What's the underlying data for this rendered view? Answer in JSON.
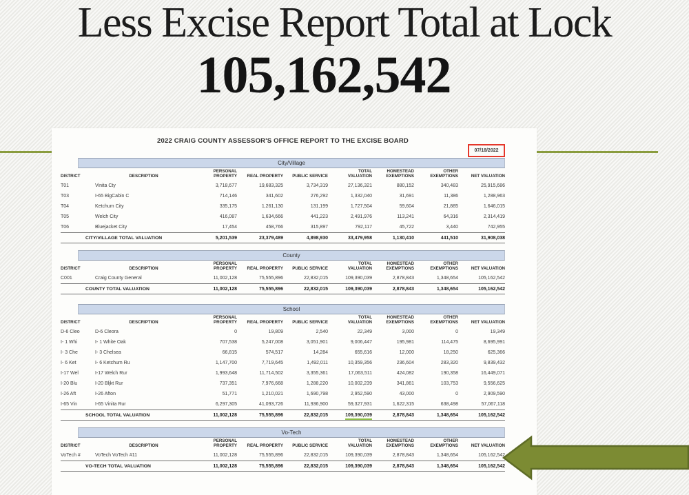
{
  "slide": {
    "title": "Less Excise Report Total at Lock",
    "total_value": "105,162,542"
  },
  "report": {
    "title": "2022 CRAIG COUNTY ASSESSOR'S OFFICE REPORT TO THE EXCISE BOARD",
    "date": "07/18/2022",
    "columns": [
      "DISTRICT",
      "DESCRIPTION",
      "PERSONAL\nPROPERTY",
      "REAL PROPERTY",
      "PUBLIC SERVICE",
      "TOTAL\nVALUATION",
      "HOMESTEAD\nEXEMPTIONS",
      "OTHER\nEXEMPTIONS",
      "NET VALUATION"
    ],
    "sections": [
      {
        "label": "City/Village",
        "rows": [
          {
            "district": "T01",
            "description": "Vinita Cty",
            "values": [
              "3,718,677",
              "19,683,325",
              "3,734,319",
              "27,136,321",
              "880,152",
              "340,483",
              "25,915,686"
            ]
          },
          {
            "district": "T03",
            "description": "I-65 BigCabin C",
            "values": [
              "714,146",
              "341,602",
              "276,292",
              "1,332,040",
              "31,691",
              "11,386",
              "1,288,963"
            ]
          },
          {
            "district": "T04",
            "description": "Ketchum City",
            "values": [
              "335,175",
              "1,261,130",
              "131,199",
              "1,727,504",
              "59,604",
              "21,885",
              "1,646,015"
            ]
          },
          {
            "district": "T05",
            "description": "Welch City",
            "values": [
              "416,087",
              "1,634,666",
              "441,223",
              "2,491,976",
              "113,241",
              "64,316",
              "2,314,419"
            ]
          },
          {
            "district": "T06",
            "description": "Bluejacket City",
            "values": [
              "17,454",
              "458,766",
              "315,897",
              "792,117",
              "45,722",
              "3,440",
              "742,955"
            ]
          }
        ],
        "total": {
          "label": "CITY/VILLAGE TOTAL VALUATION",
          "values": [
            "5,201,539",
            "23,379,489",
            "4,898,930",
            "33,479,958",
            "1,130,410",
            "441,510",
            "31,908,038"
          ]
        }
      },
      {
        "label": "County",
        "rows": [
          {
            "district": "C001",
            "description": "Craig County General",
            "values": [
              "11,002,128",
              "75,555,896",
              "22,832,015",
              "109,390,039",
              "2,878,843",
              "1,348,654",
              "105,162,542"
            ]
          }
        ],
        "total": {
          "label": "COUNTY TOTAL VALUATION",
          "values": [
            "11,002,128",
            "75,555,896",
            "22,832,015",
            "109,390,039",
            "2,878,843",
            "1,348,654",
            "105,162,542"
          ]
        }
      },
      {
        "label": "School",
        "rows": [
          {
            "district": "D-6 Cleo",
            "description": "D-6 Cleora",
            "values": [
              "0",
              "19,809",
              "2,540",
              "22,349",
              "3,000",
              "0",
              "19,349"
            ]
          },
          {
            "district": "I- 1 Whi",
            "description": "I- 1 White Oak",
            "values": [
              "707,538",
              "5,247,008",
              "3,051,901",
              "9,006,447",
              "195,981",
              "114,475",
              "8,695,991"
            ]
          },
          {
            "district": "I- 3 Che",
            "description": "I- 3 Chelsea",
            "values": [
              "66,815",
              "574,517",
              "14,284",
              "655,616",
              "12,000",
              "18,250",
              "625,366"
            ]
          },
          {
            "district": "I- 6 Ket",
            "description": "I- 6 Ketchum Ru",
            "values": [
              "1,147,700",
              "7,719,645",
              "1,492,011",
              "10,359,356",
              "236,604",
              "283,320",
              "9,839,432"
            ]
          },
          {
            "district": "I-17 Wel",
            "description": "I-17 Welch Rur",
            "values": [
              "1,993,648",
              "11,714,502",
              "3,355,361",
              "17,063,511",
              "424,082",
              "190,358",
              "16,449,071"
            ]
          },
          {
            "district": "I-20 Blu",
            "description": "I-20 Bljkt Rur",
            "values": [
              "737,351",
              "7,976,668",
              "1,288,220",
              "10,002,239",
              "341,861",
              "103,753",
              "9,556,625"
            ]
          },
          {
            "district": "I-26 Aft",
            "description": "I-26 Afton",
            "values": [
              "51,771",
              "1,210,021",
              "1,690,798",
              "2,952,590",
              "43,000",
              "0",
              "2,909,590"
            ]
          },
          {
            "district": "I-65 Vin",
            "description": "I-65 Vinita Rur",
            "values": [
              "6,297,305",
              "41,093,726",
              "11,936,900",
              "59,327,931",
              "1,622,315",
              "638,498",
              "57,067,118"
            ]
          }
        ],
        "total": {
          "label": "SCHOOL TOTAL VALUATION",
          "values": [
            "11,002,128",
            "75,555,896",
            "22,832,015",
            "109,390,039",
            "2,878,843",
            "1,348,654",
            "105,162,542"
          ],
          "underline_value_index": 3
        }
      },
      {
        "label": "Vo-Tech",
        "rows": [
          {
            "district": "VoTech #",
            "description": "VoTech VoTech #11",
            "values": [
              "11,002,128",
              "75,555,896",
              "22,832,015",
              "109,390,039",
              "2,878,843",
              "1,348,654",
              "105,162,542"
            ]
          }
        ],
        "total": {
          "label": "VO-TECH TOTAL VALUATION",
          "values": [
            "11,002,128",
            "75,555,896",
            "22,832,015",
            "109,390,039",
            "2,878,843",
            "1,348,654",
            "105,162,542"
          ]
        }
      }
    ]
  },
  "annotations": {
    "date_highlight_color": "#e5372b",
    "school_total_underline_color": "#8cbd44",
    "arrow_color": "#7c8b33",
    "arrow_border_color": "#5e6c27",
    "accent_line_color": "#8a9c3e",
    "section_bar_color": "#cbd7ea"
  }
}
